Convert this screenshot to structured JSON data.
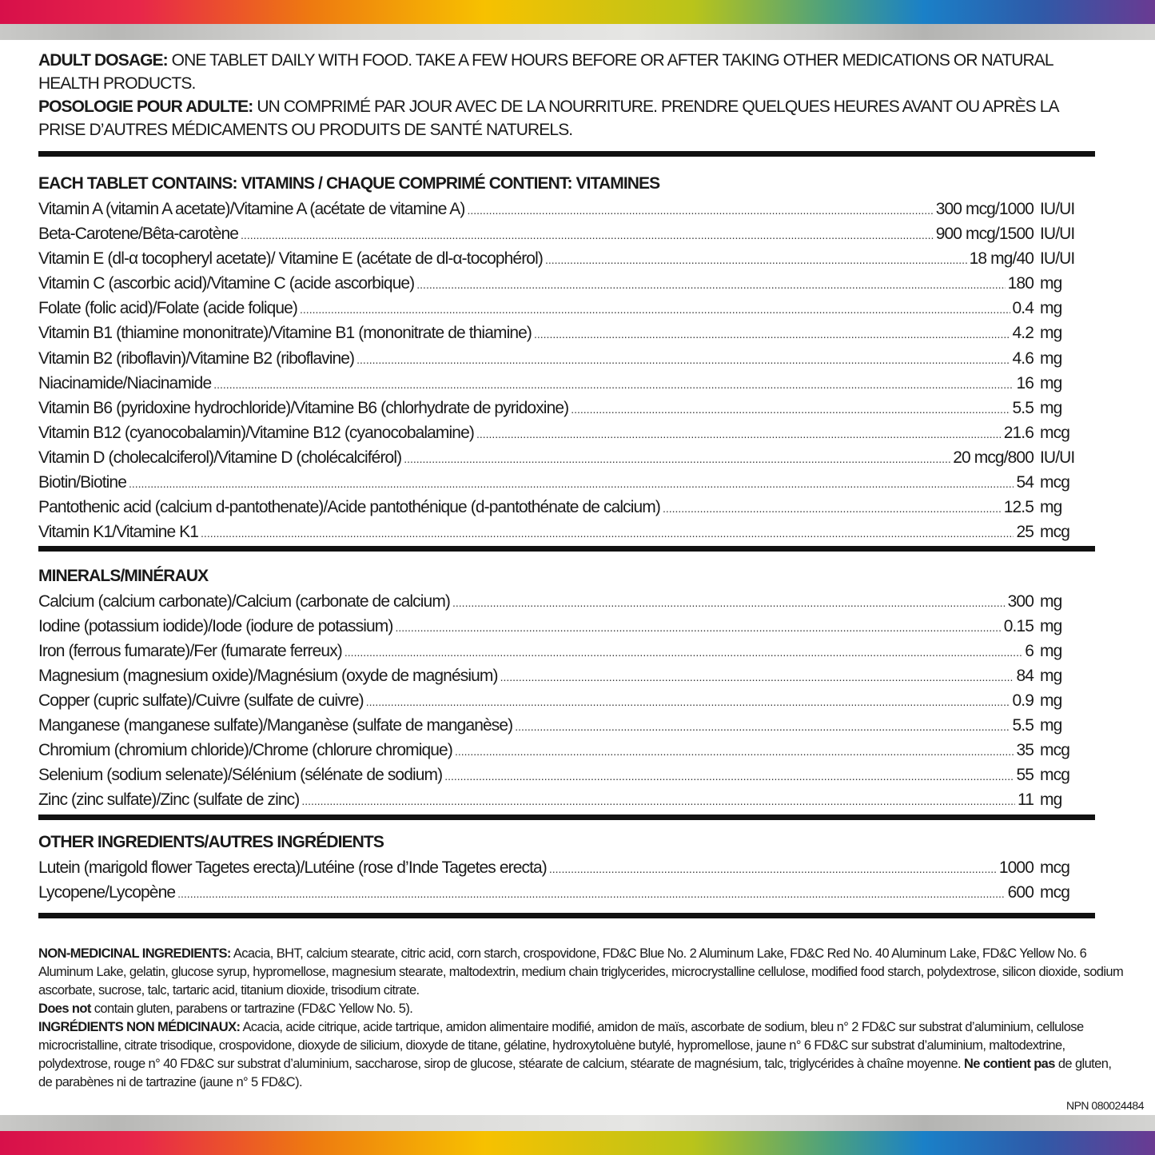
{
  "dosage": {
    "en_label": "ADULT DOSAGE:",
    "en_text": " ONE TABLET DAILY WITH FOOD. TAKE A FEW HOURS BEFORE OR AFTER TAKING OTHER MEDICATIONS OR NATURAL HEALTH PRODUCTS.",
    "fr_label": "POSOLOGIE POUR ADULTE:",
    "fr_text": " UN COMPRIMÉ PAR JOUR AVEC DE LA NOURRITURE. PRENDRE QUELQUES HEURES AVANT OU APRÈS LA PRISE D’AUTRES MÉDICAMENTS OU PRODUITS DE SANTÉ NATURELS."
  },
  "vitamins": {
    "heading": "EACH TABLET CONTAINS: VITAMINS / CHAQUE COMPRIMÉ CONTIENT: VITAMINES",
    "items": [
      {
        "name": "Vitamin A (vitamin A acetate)/Vitamine A (acétate de vitamine A)",
        "amount": "300 mcg/1000",
        "unit": "IU/UI"
      },
      {
        "name": "Beta-Carotene/Bêta-carotène",
        "amount": "900 mcg/1500",
        "unit": "IU/UI"
      },
      {
        "name": "Vitamin E (dl-α tocopheryl acetate)/ Vitamine E (acétate de dl-α-tocophérol)",
        "amount": "18 mg/40",
        "unit": "IU/UI"
      },
      {
        "name": "Vitamin C (ascorbic acid)/Vitamine C (acide ascorbique)",
        "amount": "180",
        "unit": "mg"
      },
      {
        "name": "Folate (folic acid)/Folate (acide folique)",
        "amount": "0.4",
        "unit": "mg"
      },
      {
        "name": "Vitamin B1 (thiamine mononitrate)/Vitamine B1 (mononitrate de thiamine)",
        "amount": "4.2",
        "unit": "mg"
      },
      {
        "name": "Vitamin B2 (riboflavin)/Vitamine B2 (riboflavine)",
        "amount": "4.6",
        "unit": "mg"
      },
      {
        "name": "Niacinamide/Niacinamide",
        "amount": "16",
        "unit": "mg"
      },
      {
        "name": "Vitamin B6 (pyridoxine hydrochloride)/Vitamine B6 (chlorhydrate de pyridoxine)",
        "amount": "5.5",
        "unit": "mg"
      },
      {
        "name": "Vitamin B12 (cyanocobalamin)/Vitamine B12 (cyanocobalamine)",
        "amount": "21.6",
        "unit": "mcg"
      },
      {
        "name": "Vitamin D (cholecalciferol)/Vitamine D (cholécalciférol)",
        "amount": "20 mcg/800",
        "unit": "IU/UI"
      },
      {
        "name": "Biotin/Biotine",
        "amount": "54",
        "unit": "mcg"
      },
      {
        "name": "Pantothenic acid (calcium d-pantothenate)/Acide pantothénique (d-pantothénate de calcium)",
        "amount": "12.5",
        "unit": "mg"
      },
      {
        "name": "Vitamin K1/Vitamine K1",
        "amount": "25",
        "unit": "mcg"
      }
    ]
  },
  "minerals": {
    "heading": "MINERALS/MINÉRAUX",
    "items": [
      {
        "name": "Calcium (calcium carbonate)/Calcium (carbonate de calcium)",
        "amount": "300",
        "unit": "mg"
      },
      {
        "name": "Iodine (potassium iodide)/Iode (iodure de potassium)",
        "amount": "0.15",
        "unit": "mg"
      },
      {
        "name": "Iron (ferrous fumarate)/Fer (fumarate ferreux)",
        "amount": "6",
        "unit": "mg"
      },
      {
        "name": "Magnesium (magnesium oxide)/Magnésium (oxyde de magnésium)",
        "amount": "84",
        "unit": "mg"
      },
      {
        "name": "Copper (cupric sulfate)/Cuivre (sulfate de cuivre)",
        "amount": "0.9",
        "unit": "mg"
      },
      {
        "name": "Manganese (manganese sulfate)/Manganèse (sulfate de manganèse)",
        "amount": "5.5",
        "unit": "mg"
      },
      {
        "name": "Chromium (chromium chloride)/Chrome (chlorure chromique)",
        "amount": "35",
        "unit": "mcg"
      },
      {
        "name": "Selenium (sodium selenate)/Sélénium (sélénate de sodium)",
        "amount": "55",
        "unit": "mcg"
      },
      {
        "name": "Zinc (zinc sulfate)/Zinc (sulfate de zinc)",
        "amount": "11",
        "unit": "mg"
      }
    ]
  },
  "other": {
    "heading": "OTHER INGREDIENTS/AUTRES INGRÉDIENTS",
    "items": [
      {
        "name": "Lutein (marigold flower Tagetes erecta)/Lutéine (rose d’Inde Tagetes erecta)",
        "amount": "1000",
        "unit": "mcg"
      },
      {
        "name": "Lycopene/Lycopène",
        "amount": "600",
        "unit": "mcg"
      }
    ]
  },
  "nonmedicinal": {
    "en_label": "NON-MEDICINAL INGREDIENTS:",
    "en_text": " Acacia, BHT, calcium stearate, citric acid, corn starch, crospovidone, FD&C Blue No. 2 Aluminum Lake, FD&C Red No. 40 Aluminum Lake, FD&C Yellow No. 6 Aluminum Lake, gelatin, glucose syrup, hypromellose, magnesium stearate, maltodextrin, medium chain triglycerides, microcrystalline cellulose, modified food starch, polydextrose, silicon dioxide, sodium ascorbate, sucrose, talc, tartaric acid, titanium dioxide, trisodium citrate.",
    "en_free_label": "Does not",
    "en_free_text": " contain gluten, parabens or tartrazine (FD&C Yellow No. 5).",
    "fr_label": "INGRÉDIENTS NON MÉDICINAUX:",
    "fr_text": " Acacia, acide citrique, acide tartrique, amidon alimentaire modifié, amidon de maïs, ascorbate de sodium, bleu n° 2 FD&C sur substrat d’aluminium, cellulose microcristalline, citrate trisodique, crospovidone, dioxyde de silicium, dioxyde de titane, gélatine, hydroxytoluène butylé, hypromellose, jaune n° 6 FD&C sur substrat d’aluminium, maltodextrine, polydextrose, rouge n° 40 FD&C sur substrat d’aluminium, saccharose, sirop de glucose, stéarate de calcium, stéarate de magnésium, talc, triglycérides à chaîne moyenne.",
    "fr_free_label": "Ne contient pas",
    "fr_free_text": " de gluten, de parabènes ni de tartrazine (jaune n° 5 FD&C)."
  },
  "npn": "NPN 080024484"
}
